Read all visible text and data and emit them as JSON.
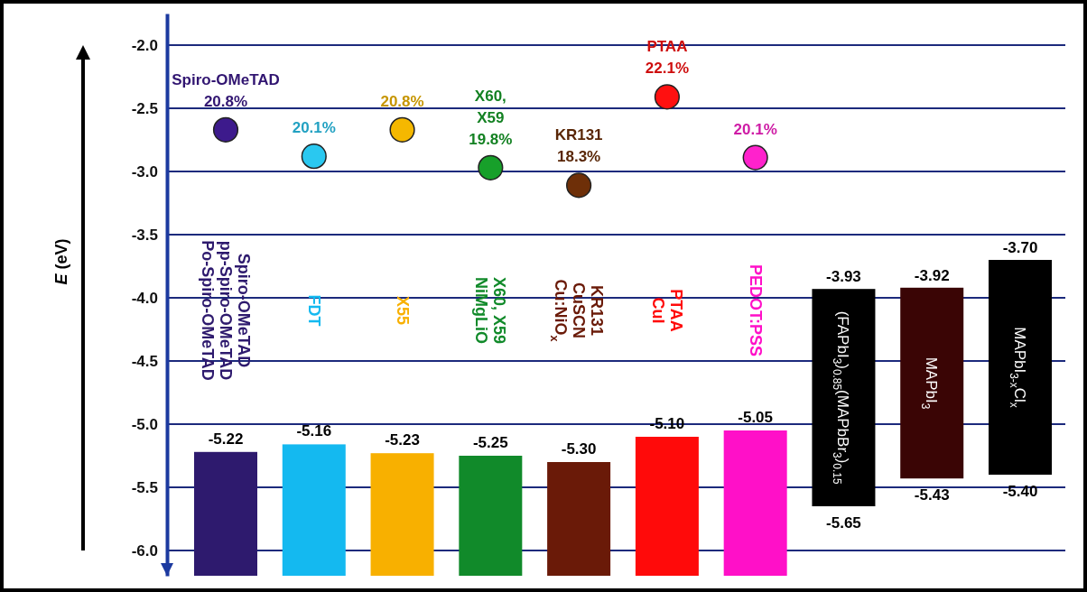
{
  "chart_data": {
    "type": "bar",
    "ylabel": "E (eV)",
    "categories": [
      "Spiro-OMeTAD\npp-Spiro-OMeTAD\nPo-Spiro-OMeTAD",
      "FDT",
      "X55",
      "X60, X59\nNiMgLiO",
      "KR131\nCuSCN\nCu:NiO$_{x}$",
      "PTAA\nCuI",
      "PEDOT:PSS",
      "(FAPbI$_{3}$)$_{0.85}$(MAPbBr$_{3}$)$_{0.15}$",
      "MAPbI$_{3}$",
      "MAPbI$_{3-x}$Cl$_{x}$"
    ],
    "series": [
      {
        "base": [
          -6.2,
          -6.2,
          -6.2,
          -6.2,
          -6.2,
          -6.2,
          -6.2,
          null,
          null,
          null
        ],
        "values": [
          0.98,
          1.04,
          0.97,
          0.95,
          0.9,
          1.1,
          1.15,
          null,
          null,
          null
        ],
        "colors": [
          "#2e1a6e",
          "#14b9f0",
          "#f8b000",
          "#118a2a",
          "#6a1a08",
          "#ff0a0a",
          "#ff10c8",
          null,
          null,
          null
        ],
        "value_labels": [
          "-5.22",
          "-5.16",
          "-5.23",
          "-5.25",
          "-5.30",
          "-5.10",
          "-5.05",
          null,
          null,
          null
        ]
      },
      {
        "base": [
          null,
          null,
          null,
          null,
          null,
          null,
          null,
          -3.93,
          -3.92,
          -3.7
        ],
        "values": [
          null,
          null,
          null,
          null,
          null,
          null,
          null,
          -1.72,
          -1.51,
          -1.7
        ],
        "colors": [
          null,
          null,
          null,
          null,
          null,
          null,
          null,
          "#000000",
          "#3a0505",
          "#000000"
        ],
        "value_labels": [
          null,
          null,
          null,
          null,
          null,
          null,
          null,
          "-5.65",
          "-5.43",
          "-5.40"
        ]
      },
      {
        "type": "scatter",
        "values": [
          -2.67,
          -2.88,
          -2.67,
          -2.97,
          -3.11,
          -2.41,
          -2.89,
          null,
          null,
          null
        ],
        "colors": [
          "#3d1a8c",
          "#2ac8f0",
          "#f5b800",
          "#17a02a",
          "#6e2f08",
          "#ff1010",
          "#ff22cc",
          null,
          null,
          null
        ]
      }
    ],
    "annotations": [
      {
        "text": "Spiro-OMeTAD\n20.8%",
        "x": "Spiro-OMeTAD\npp-Spiro-OMeTAD\nPo-Spiro-OMeTAD",
        "y": -2.67
      },
      {
        "text": "20.1%",
        "x": "FDT",
        "y": -2.88
      },
      {
        "text": "20.8%",
        "x": "X55",
        "y": -2.67
      },
      {
        "text": "X60,\nX59\n19.8%",
        "x": "X60, X59\nNiMgLiO",
        "y": -2.97
      },
      {
        "text": "KR131\n18.3%",
        "x": "KR131\nCuSCN\nCu:NiO$_{x}$",
        "y": -3.11
      },
      {
        "text": "PTAA\n22.1%",
        "x": "PTAA\nCuI",
        "y": -2.41
      },
      {
        "text": "20.1%",
        "x": "PEDOT:PSS",
        "y": -2.89
      },
      {
        "text": "-3.93",
        "x": "(FAPbI$_{3}$)$_{0.85}$(MAPbBr$_{3}$)$_{0.15}$",
        "y": -3.93
      },
      {
        "text": "-3.92",
        "x": "MAPbI$_{3}$",
        "y": -3.92
      },
      {
        "text": "-3.70",
        "x": "MAPbI$_{3-x}$Cl$_{x}$",
        "y": -3.7
      }
    ],
    "ylim": [
      -6.2,
      -1.75
    ],
    "yticks": [
      {
        "value": -2,
        "label": "-2.0"
      },
      {
        "value": -2.5,
        "label": "-2.5"
      },
      {
        "value": -3,
        "label": "-3.0"
      },
      {
        "value": -3.5,
        "label": "-3.5"
      },
      {
        "value": -4,
        "label": "-4.0"
      },
      {
        "value": -4.5,
        "label": "-4.5"
      },
      {
        "value": -5,
        "label": "-5.0"
      },
      {
        "value": -5.5,
        "label": "-5.5"
      },
      {
        "value": -6,
        "label": "-6.0"
      }
    ],
    "grid": "y",
    "tick_labels": "y",
    "marker": "circle"
  }
}
